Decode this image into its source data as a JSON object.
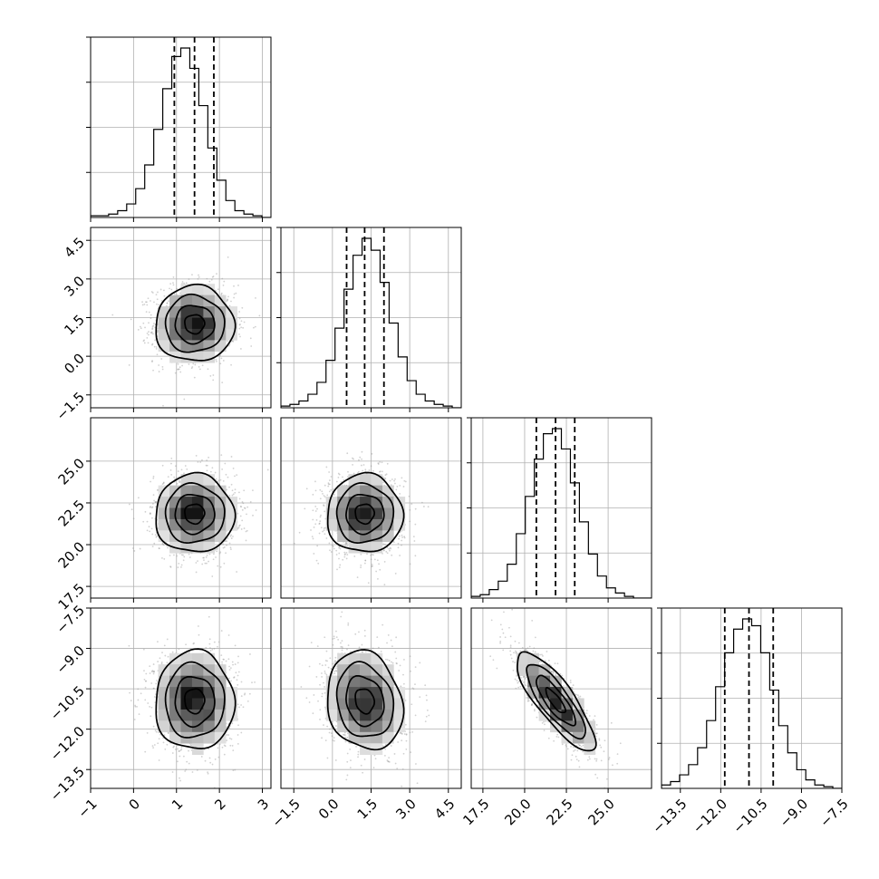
{
  "chart_data": {
    "type": "corner",
    "title": "",
    "parameters": [
      {
        "id": "p0",
        "median": 1.42,
        "quantile_lo": 0.95,
        "quantile_hi": 1.87,
        "sigma": 0.45,
        "axis_range": [
          -1.0,
          3.2
        ],
        "ticks": [
          -1,
          0,
          1,
          2,
          3
        ],
        "tick_labels": [
          "−1",
          "0",
          "1",
          "2",
          "3"
        ],
        "hist_counts": [
          0.01,
          0.01,
          0.02,
          0.04,
          0.08,
          0.17,
          0.31,
          0.52,
          0.76,
          0.95,
          1.0,
          0.88,
          0.66,
          0.41,
          0.22,
          0.1,
          0.04,
          0.02,
          0.01,
          0.0
        ]
      },
      {
        "id": "p1",
        "median": 1.25,
        "quantile_lo": 0.55,
        "quantile_hi": 2.0,
        "sigma": 0.72,
        "axis_range": [
          -2.0,
          5.0
        ],
        "ticks": [
          -1.5,
          0.0,
          1.5,
          3.0,
          4.5
        ],
        "tick_labels": [
          "−1.5",
          "0.0",
          "1.5",
          "3.0",
          "4.5"
        ],
        "hist_counts": [
          0.01,
          0.02,
          0.04,
          0.08,
          0.15,
          0.28,
          0.47,
          0.7,
          0.9,
          1.0,
          0.93,
          0.74,
          0.5,
          0.3,
          0.16,
          0.08,
          0.04,
          0.02,
          0.01,
          0.0
        ]
      },
      {
        "id": "p2",
        "median": 21.85,
        "quantile_lo": 20.7,
        "quantile_hi": 23.0,
        "sigma": 1.15,
        "axis_range": [
          16.8,
          27.6
        ],
        "ticks": [
          17.5,
          20.0,
          22.5,
          25.0
        ],
        "tick_labels": [
          "17.5",
          "20.0",
          "22.5",
          "25.0"
        ],
        "hist_counts": [
          0.01,
          0.02,
          0.05,
          0.1,
          0.2,
          0.38,
          0.6,
          0.82,
          0.97,
          1.0,
          0.88,
          0.68,
          0.45,
          0.26,
          0.13,
          0.06,
          0.03,
          0.01,
          0.0,
          0.0
        ]
      },
      {
        "id": "p3",
        "median": -10.95,
        "quantile_lo": -11.85,
        "quantile_hi": -10.05,
        "sigma": 0.9,
        "axis_range": [
          -14.2,
          -7.5
        ],
        "ticks": [
          -13.5,
          -12.0,
          -10.5,
          -9.0,
          -7.5
        ],
        "tick_labels": [
          "−13.5",
          "−12.0",
          "−10.5",
          "−9.0",
          "−7.5"
        ],
        "hist_counts": [
          0.02,
          0.04,
          0.08,
          0.14,
          0.24,
          0.4,
          0.6,
          0.8,
          0.94,
          1.0,
          0.96,
          0.8,
          0.58,
          0.37,
          0.21,
          0.11,
          0.05,
          0.02,
          0.01,
          0.0
        ]
      }
    ],
    "correlations": {
      "1,0": 0.0,
      "2,0": 0.0,
      "2,1": 0.0,
      "3,0": 0.0,
      "3,1": -0.15,
      "3,2": -0.82
    },
    "quantiles": [
      0.16,
      0.5,
      0.84
    ],
    "contour_levels_sigma": [
      0.5,
      1.0,
      1.5,
      2.0
    ],
    "grid": true
  }
}
